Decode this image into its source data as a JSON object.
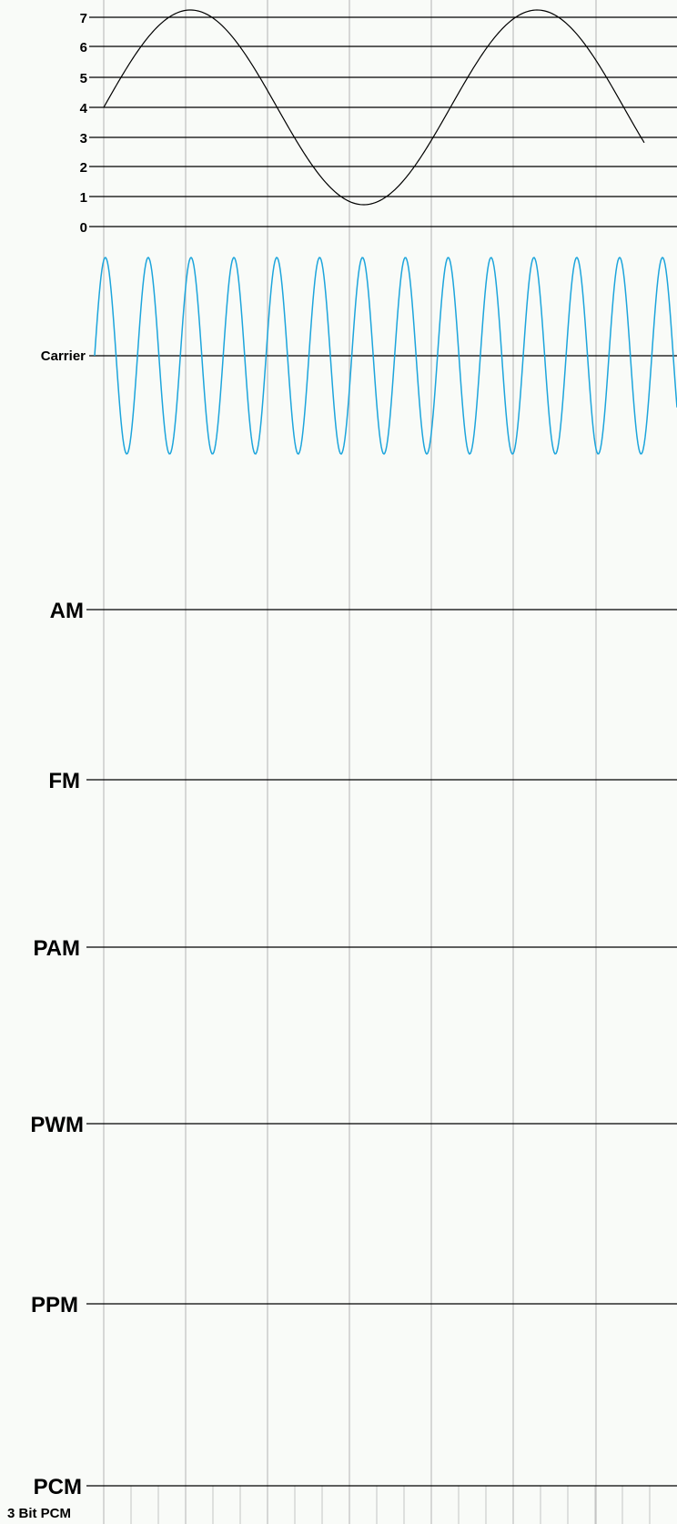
{
  "levels": [
    "0",
    "1",
    "2",
    "3",
    "4",
    "5",
    "6",
    "7"
  ],
  "signal_labels": {
    "carrier": "Carrier",
    "am": "AM",
    "fm": "FM",
    "pam": "PAM",
    "pwm": "PWM",
    "ppm": "PPM",
    "pcm": "PCM"
  },
  "footer_label": "3 Bit PCM",
  "colors": {
    "background": "#f9fbf8",
    "grid_line": "#c4c4c4",
    "axis_line": "#000000",
    "message_wave": "#000000",
    "carrier_wave": "#1da5dc"
  }
}
